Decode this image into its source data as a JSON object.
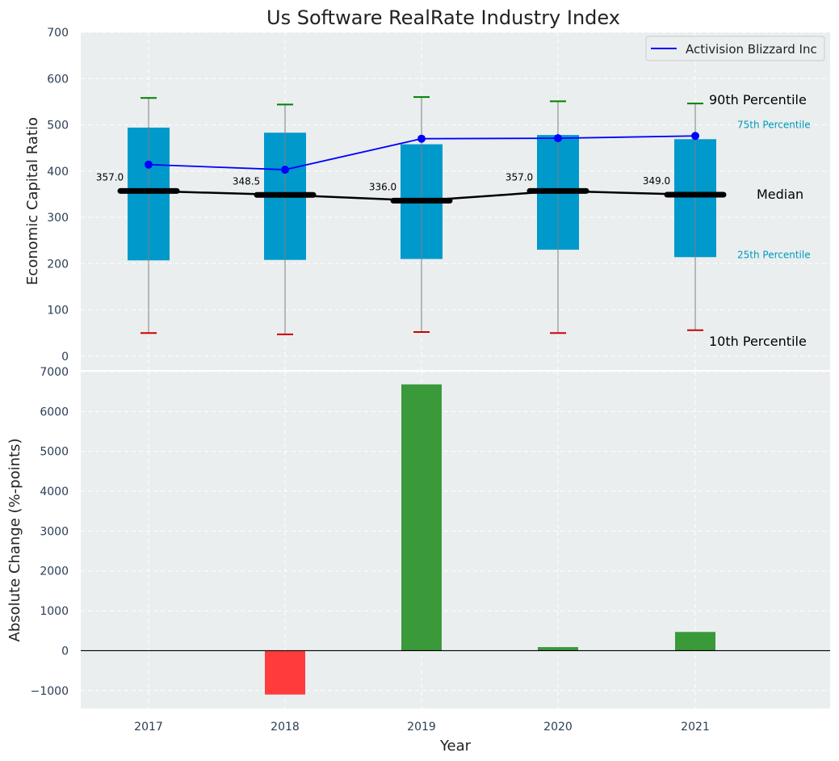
{
  "chart_data": [
    {
      "type": "box",
      "title": "Us Software RealRate Industry Index",
      "ylabel": "Economic Capital Ratio",
      "ylim": [
        -30,
        700
      ],
      "yticks": [
        0,
        100,
        200,
        300,
        400,
        500,
        600,
        700
      ],
      "categories": [
        "2017",
        "2018",
        "2019",
        "2020",
        "2021"
      ],
      "p10": [
        50,
        47,
        52,
        50,
        56
      ],
      "p25": [
        207,
        208,
        210,
        230,
        214
      ],
      "median": [
        357.0,
        348.5,
        336.0,
        357.0,
        349.0
      ],
      "median_labels": [
        "357.0",
        "348.5",
        "336.0",
        "357.0",
        "349.0"
      ],
      "p75": [
        494,
        483,
        458,
        478,
        469
      ],
      "p90": [
        558,
        544,
        560,
        551,
        546
      ],
      "series": [
        {
          "name": "Activision Blizzard Inc",
          "values": [
            414,
            403,
            470,
            471,
            476
          ]
        }
      ],
      "legend": {
        "position": "top-right",
        "entries": [
          "Activision Blizzard Inc"
        ]
      },
      "annotations": {
        "p90": "90th Percentile",
        "p75": "75th Percentile",
        "median": "Median",
        "p25": "25th Percentile",
        "p10": "10th Percentile"
      },
      "grid": true,
      "colors": {
        "box": "#0099cc",
        "company_line": "#0000ff",
        "median_line": "#000000",
        "p90_cap": "#008000",
        "p10_cap": "#cc0000",
        "whisker": "#808080",
        "p75_25_text": "#0099bb",
        "background": "#eaeeef"
      }
    },
    {
      "type": "bar",
      "xlabel": "Year",
      "ylabel": "Absolute Change (%-points)",
      "ylim": [
        -1450,
        7000
      ],
      "yticks": [
        -1000,
        0,
        1000,
        2000,
        3000,
        4000,
        5000,
        6000,
        7000
      ],
      "ytick_labels": [
        "−1000",
        "0",
        "1000",
        "2000",
        "3000",
        "4000",
        "5000",
        "6000",
        "7000"
      ],
      "categories": [
        "2017",
        "2018",
        "2019",
        "2020",
        "2021"
      ],
      "values": [
        0,
        -1100,
        6680,
        90,
        470
      ],
      "grid": true,
      "colors": {
        "positive": "#3a9a3a",
        "negative": "#ff3b3b",
        "zero_line": "#000000",
        "background": "#eaeeef"
      }
    }
  ]
}
